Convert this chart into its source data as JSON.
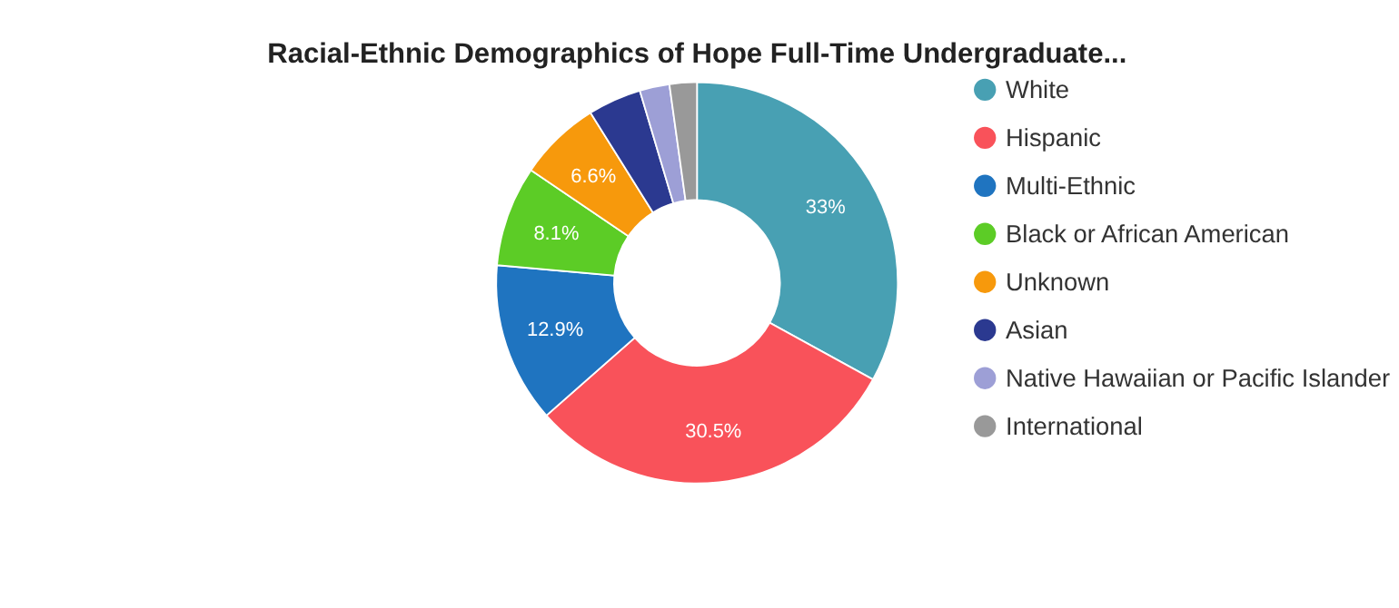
{
  "chart_data": {
    "type": "donut",
    "title": "Racial-Ethnic Demographics of Hope Full-Time Undergraduate...",
    "categories": [
      "White",
      "Hispanic",
      "Multi-Ethnic",
      "Black or African American",
      "Unknown",
      "Asian",
      "Native Hawaiian or Pacific Islander",
      "International"
    ],
    "values": [
      33,
      30.5,
      12.9,
      8.1,
      6.6,
      4.3,
      2.4,
      2.2
    ],
    "value_labels": [
      "33%",
      "30.5%",
      "12.9%",
      "8.1%",
      "6.6%",
      null,
      null,
      null
    ],
    "colors": [
      "#48a0b3",
      "#f9525a",
      "#1f74c0",
      "#5ccc26",
      "#f7990c",
      "#2b3990",
      "#9d9fd6",
      "#999999"
    ],
    "legend": "right"
  }
}
